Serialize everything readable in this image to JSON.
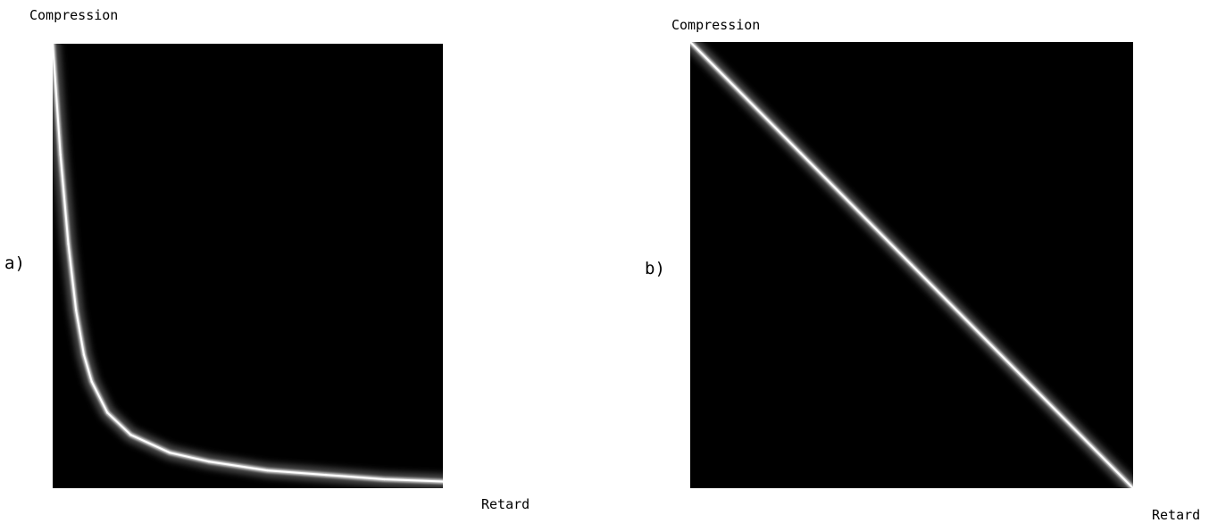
{
  "chart_data": [
    {
      "panel_label": "a)",
      "type": "heatmap",
      "ylabel": "Compression",
      "xlabel": "Retard",
      "colors": {
        "background": "#000000",
        "ridge": "#ffffff"
      },
      "x": [
        0.0,
        0.02,
        0.04,
        0.06,
        0.08,
        0.1,
        0.14,
        0.2,
        0.3,
        0.4,
        0.55,
        0.7,
        0.85,
        1.0
      ],
      "ridge": [
        1.0,
        0.75,
        0.55,
        0.4,
        0.3,
        0.24,
        0.17,
        0.12,
        0.08,
        0.06,
        0.04,
        0.03,
        0.02,
        0.015
      ],
      "xlim": [
        0,
        1
      ],
      "ylim": [
        0,
        1
      ]
    },
    {
      "panel_label": "b)",
      "type": "heatmap",
      "ylabel": "Compression",
      "xlabel": "Retard",
      "colors": {
        "background": "#000000",
        "ridge": "#ffffff"
      },
      "x": [
        0.0,
        0.25,
        0.5,
        0.75,
        1.0
      ],
      "ridge": [
        1.0,
        0.75,
        0.5,
        0.25,
        0.0
      ],
      "xlim": [
        0,
        1
      ],
      "ylim": [
        0,
        1
      ]
    }
  ]
}
